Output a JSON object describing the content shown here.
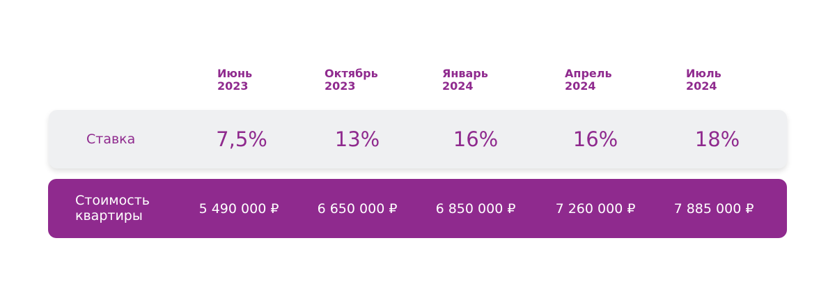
{
  "columns": [
    {
      "month": "Июнь",
      "year": "2023"
    },
    {
      "month": "Октябрь",
      "year": "2023"
    },
    {
      "month": "Январь",
      "year": "2024"
    },
    {
      "month": "Апрель",
      "year": "2024"
    },
    {
      "month": "Июль",
      "year": "2024"
    }
  ],
  "rate_row": {
    "label": "Ставка",
    "values": [
      "7,5%",
      "13%",
      "16%",
      "16%",
      "18%"
    ]
  },
  "price_row": {
    "label_line1": "Стоимость",
    "label_line2": "квартиры",
    "values": [
      "5 490 000 ₽",
      "6 650 000 ₽",
      "6 850 000 ₽",
      "7 260 000 ₽",
      "7 885 000 ₽"
    ]
  },
  "colors": {
    "accent": "#8f2a8e",
    "rate_row_bg": "#eff0f2",
    "page_bg": "#ffffff"
  }
}
